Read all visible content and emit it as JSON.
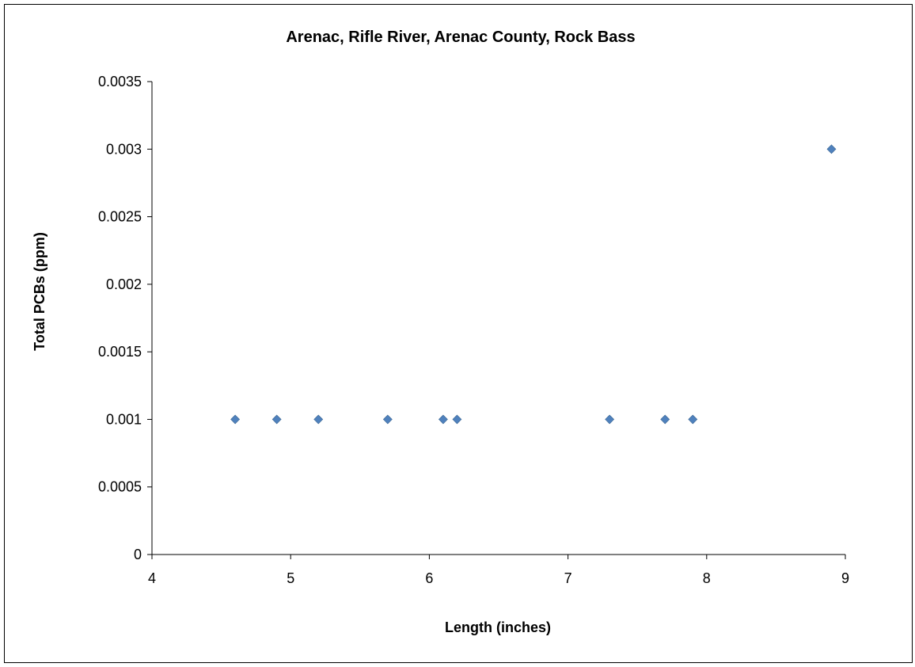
{
  "chart_data": {
    "type": "scatter",
    "title": "Arenac, Rifle River, Arenac County, Rock Bass",
    "xlabel": "Length (inches)",
    "ylabel": "Total PCBs (ppm)",
    "xlim": [
      4,
      9
    ],
    "ylim": [
      0,
      0.0035
    ],
    "x_ticks": [
      "4",
      "5",
      "6",
      "7",
      "8",
      "9"
    ],
    "y_ticks": [
      "0",
      "0.0005",
      "0.001",
      "0.0015",
      "0.002",
      "0.0025",
      "0.003",
      "0.0035"
    ],
    "grid": false,
    "legend": "none",
    "marker": "diamond",
    "series": [
      {
        "color": "#4F81BD",
        "points": [
          {
            "x": 4.6,
            "y": 0.001
          },
          {
            "x": 4.9,
            "y": 0.001
          },
          {
            "x": 5.2,
            "y": 0.001
          },
          {
            "x": 5.7,
            "y": 0.001
          },
          {
            "x": 6.1,
            "y": 0.001
          },
          {
            "x": 6.2,
            "y": 0.001
          },
          {
            "x": 7.3,
            "y": 0.001
          },
          {
            "x": 7.7,
            "y": 0.001
          },
          {
            "x": 7.9,
            "y": 0.001
          },
          {
            "x": 8.9,
            "y": 0.003
          }
        ]
      }
    ]
  }
}
